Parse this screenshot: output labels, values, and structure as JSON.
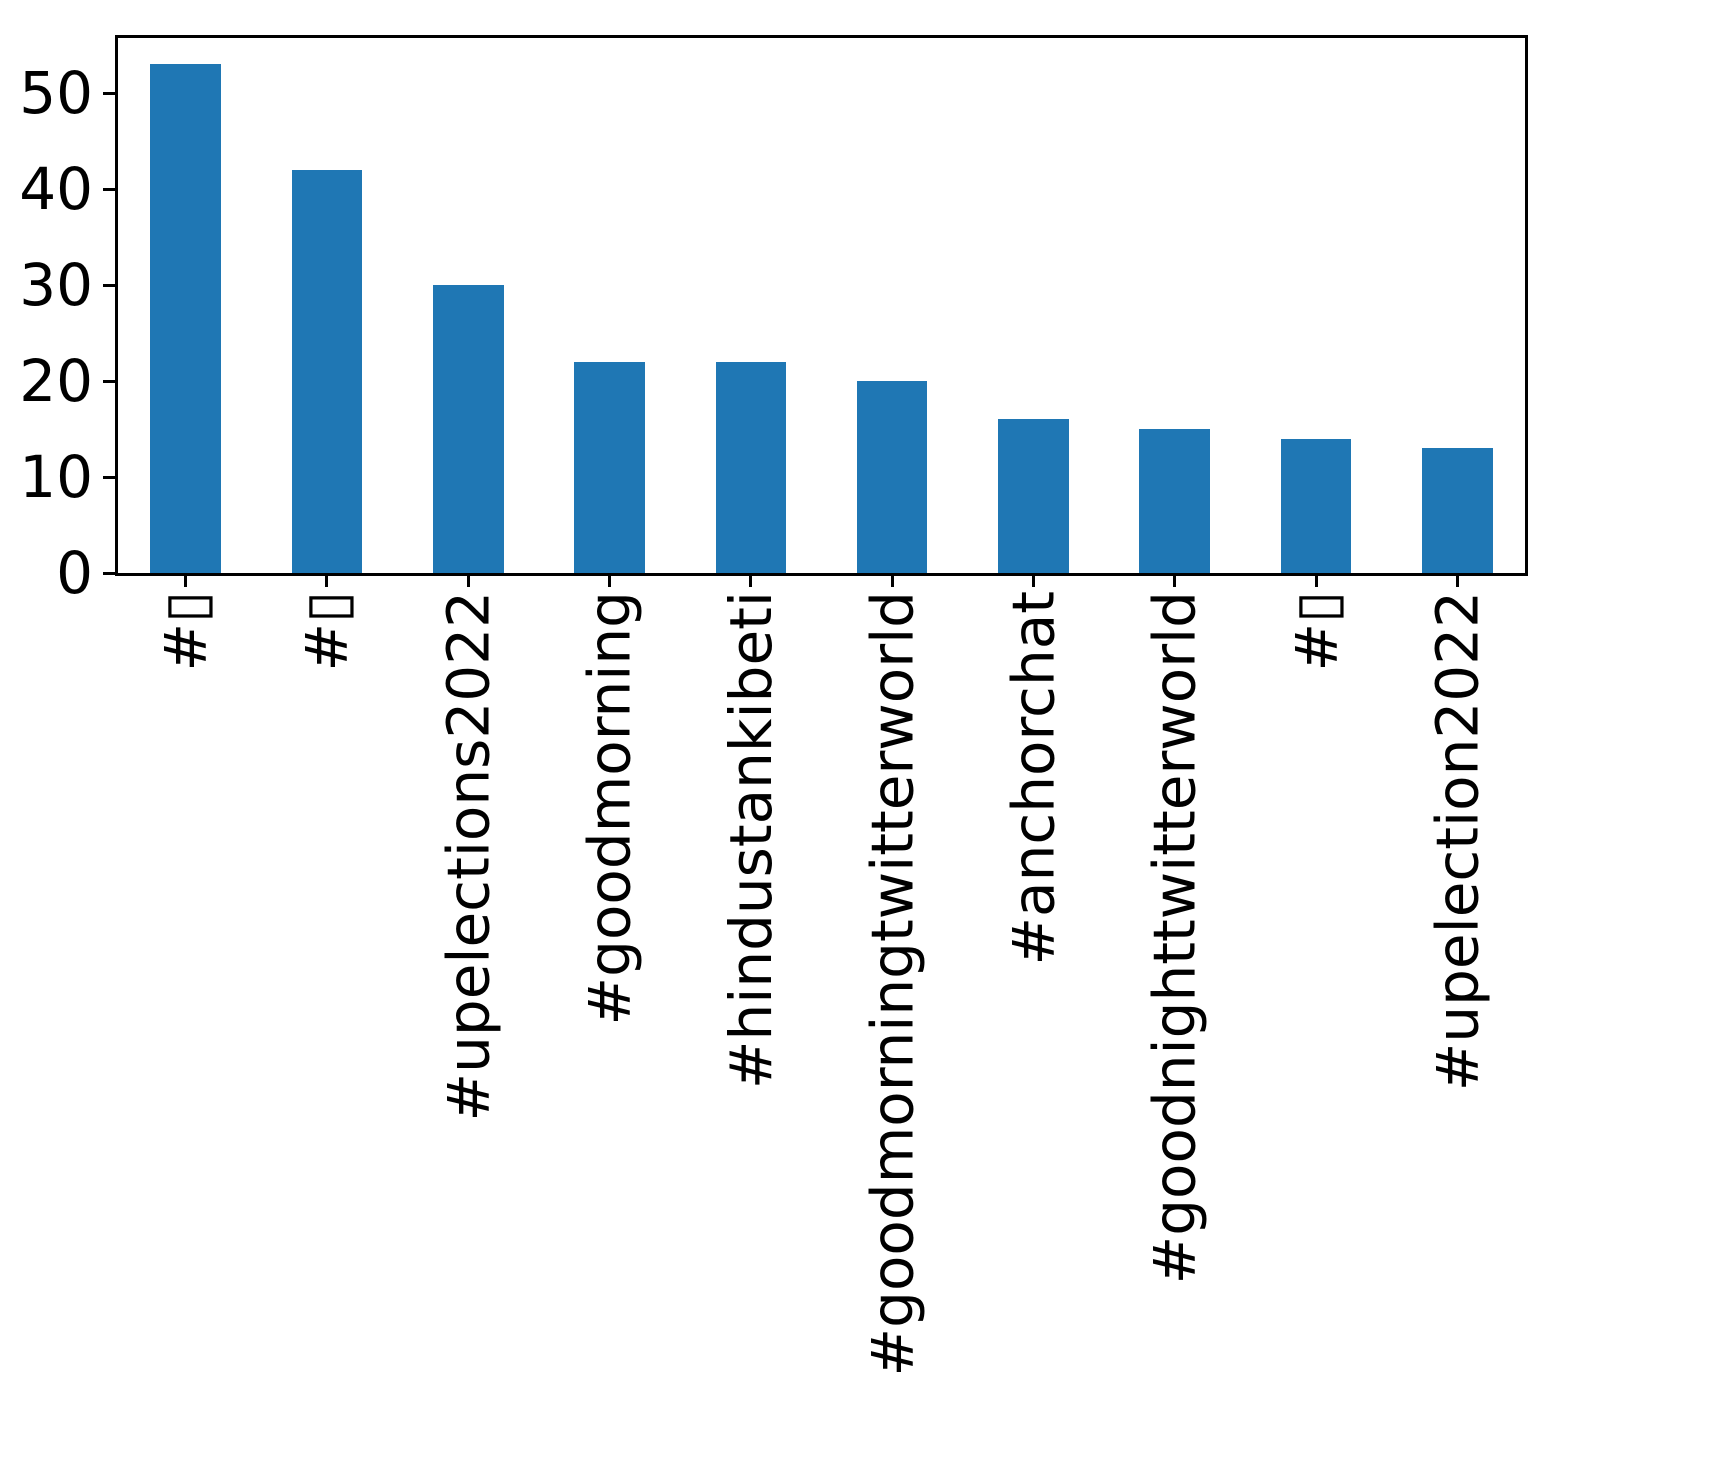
{
  "chart_data": {
    "type": "bar",
    "title": "",
    "xlabel": "",
    "ylabel": "",
    "categories": [
      "#▯",
      "#▯",
      "#upelections2022",
      "#goodmorning",
      "#hindustankibeti",
      "#goodmorningtwitterworld",
      "#anchorchat",
      "#goodnighttwitterworld",
      "#▯",
      "#upelection2022"
    ],
    "values": [
      53,
      42,
      30,
      22,
      22,
      20,
      16,
      15,
      14,
      13
    ],
    "yticks": [
      0,
      10,
      20,
      30,
      40,
      50
    ],
    "ylim": [
      0,
      56
    ],
    "xtick_rotation_degrees": 90,
    "grid": "off",
    "legend": "none",
    "bar_color": "#1f77b4",
    "axis_color": "#000000",
    "background_color": "#ffffff"
  }
}
